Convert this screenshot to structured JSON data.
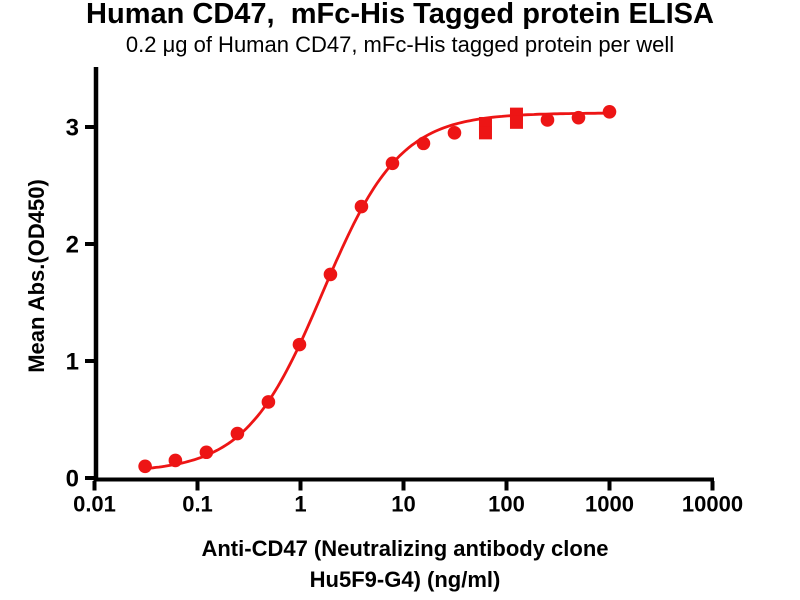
{
  "chart_data": {
    "type": "line",
    "title": "Human CD47,  mFc-His Tagged protein ELISA",
    "subtitle": "0.2 μg of Human CD47, mFc-His tagged protein per well",
    "ylabel": "Mean Abs.(OD450)",
    "xlabel_line1": "Anti-CD47 (Neutralizing antibody clone",
    "xlabel_line2": "Hu5F9-G4) (ng/ml)",
    "x_scale": "log10",
    "xlim": [
      0.01,
      10000
    ],
    "ylim": [
      0,
      3.55
    ],
    "x_ticks": [
      0.01,
      0.1,
      1,
      10,
      100,
      1000,
      10000
    ],
    "x_tick_labels": [
      "0.01",
      "0.1",
      "1",
      "10",
      "100",
      "1000",
      "10000"
    ],
    "y_ticks": [
      0,
      1,
      2,
      3
    ],
    "y_tick_labels": [
      "0",
      "1",
      "2",
      "3"
    ],
    "grid": false,
    "legend": "none",
    "color": "#ed1515",
    "axis_color": "#000000",
    "series": [
      {
        "marker": "circle",
        "points": [
          [
            0.031,
            0.1
          ],
          [
            0.061,
            0.15
          ],
          [
            0.122,
            0.22
          ],
          [
            0.244,
            0.38
          ],
          [
            0.488,
            0.65
          ],
          [
            0.977,
            1.14
          ],
          [
            1.953,
            1.74
          ],
          [
            3.906,
            2.32
          ],
          [
            7.813,
            2.69
          ],
          [
            15.625,
            2.86
          ],
          [
            31.25,
            2.95
          ],
          [
            250,
            3.06
          ],
          [
            500,
            3.08
          ],
          [
            1000,
            3.13
          ]
        ]
      },
      {
        "marker": "square",
        "points": [
          [
            62.5,
            3.03
          ],
          [
            62.5,
            2.95
          ],
          [
            125,
            3.11
          ],
          [
            125,
            3.04
          ]
        ]
      }
    ],
    "fit_curve": {
      "model": "4PL",
      "bottom": 0.05,
      "top": 3.12,
      "ec50": 1.64,
      "hill": 1.16,
      "x_min": 0.0305,
      "x_max": 1000
    }
  }
}
